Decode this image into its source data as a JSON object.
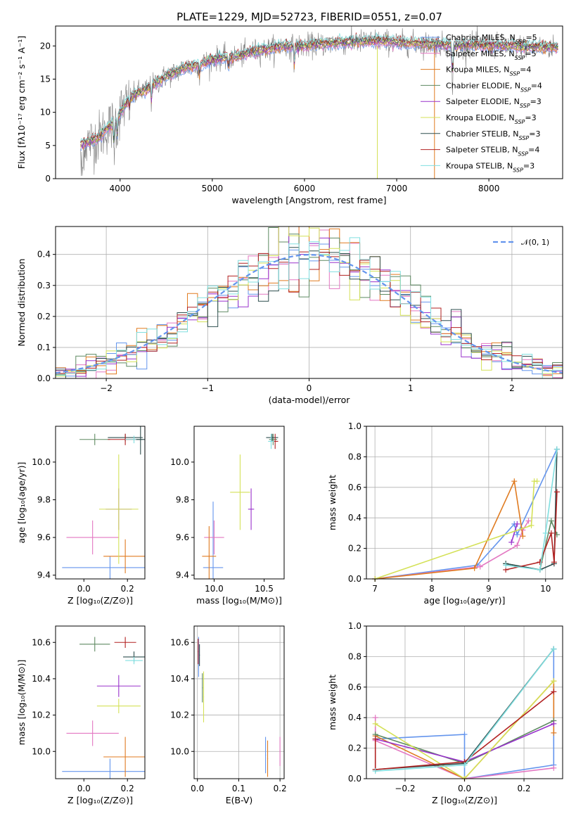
{
  "figure": {
    "title": "PLATE=1229, MJD=52723, FIBERID=0551, z=0.07"
  },
  "chart_data": [
    {
      "id": "spectrum",
      "type": "line",
      "xlabel": "wavelength [Angstrom, rest frame]",
      "ylabel": "Flux [fλ10⁻¹⁷ erg cm⁻² s⁻¹ A⁻¹]",
      "xlim": [
        3300,
        8800
      ],
      "ylim": [
        0,
        23
      ],
      "xticks": [
        "4000",
        "5000",
        "6000",
        "7000",
        "8000"
      ],
      "yticks": [
        "0",
        "5",
        "10",
        "15",
        "20"
      ],
      "grid": false,
      "legend_position": "top-right",
      "data_line": {
        "color": "#808080"
      },
      "continuum_anchors": {
        "x": [
          3570,
          3650,
          3750,
          3850,
          3950,
          4000,
          4100,
          4200,
          4300,
          4400,
          4500,
          4600,
          4700,
          4800,
          4900,
          5000,
          5100,
          5200,
          5300,
          5400,
          5500,
          5600,
          5700,
          5800,
          5900,
          6000,
          6200,
          6400,
          6600,
          6800,
          7000,
          7200,
          7400,
          7600,
          7800,
          8000,
          8200,
          8400,
          8600
        ],
        "y": [
          5.2,
          5.5,
          6.0,
          7.5,
          8.5,
          10.0,
          12.0,
          13.0,
          13.5,
          14.5,
          15.5,
          16.0,
          16.8,
          17.0,
          17.3,
          18.0,
          18.2,
          18.3,
          18.5,
          19.0,
          19.3,
          19.5,
          19.8,
          20.0,
          19.8,
          20.0,
          20.3,
          20.5,
          20.6,
          20.8,
          20.5,
          20.4,
          20.3,
          20.0,
          20.2,
          20.1,
          20.0,
          19.9,
          19.8
        ]
      },
      "series": [
        {
          "name": "Chabrier MILES, N",
          "sub": "SSP",
          "tail": "=5",
          "color": "#6495ed"
        },
        {
          "name": "Salpeter MILES, N",
          "sub": "SSP",
          "tail": "=5",
          "color": "#e377c2"
        },
        {
          "name": "Kroupa MILES, N",
          "sub": "SSP",
          "tail": "=4",
          "color": "#e07b20"
        },
        {
          "name": "Chabrier ELODIE, N",
          "sub": "SSP",
          "tail": "=4",
          "color": "#5e8a62"
        },
        {
          "name": "Salpeter ELODIE, N",
          "sub": "SSP",
          "tail": "=3",
          "color": "#9932cc"
        },
        {
          "name": "Kroupa ELODIE, N",
          "sub": "SSP",
          "tail": "=3",
          "color": "#d4e157"
        },
        {
          "name": "Chabrier STELIB, N",
          "sub": "SSP",
          "tail": "=3",
          "color": "#2f4f4f"
        },
        {
          "name": "Salpeter STELIB, N",
          "sub": "SSP",
          "tail": "=4",
          "color": "#b22222"
        },
        {
          "name": "Kroupa STELIB, N",
          "sub": "SSP",
          "tail": "=3",
          "color": "#80dfe0"
        }
      ]
    },
    {
      "id": "residuals",
      "type": "line",
      "xlabel": "(data-model)/error",
      "ylabel": "Normed distribution",
      "xlim": [
        -2.5,
        2.5
      ],
      "ylim": [
        0,
        0.49
      ],
      "xticks": [
        "−2",
        "−1",
        "0",
        "1",
        "2"
      ],
      "yticks": [
        "0.0",
        "0.1",
        "0.2",
        "0.3",
        "0.4"
      ],
      "grid": true,
      "legend_position": "top-right",
      "reference": {
        "name": "𝒩(0, 1)",
        "color": "#6495ed"
      }
    },
    {
      "id": "age_vs_Z",
      "type": "scatter",
      "xlabel": "Z [log₁₀(Z/Z⊙)]",
      "ylabel": "age  [log₁₀(age/yr)]",
      "xlim": [
        -0.13,
        0.28
      ],
      "ylim": [
        9.38,
        10.19
      ],
      "xticks": [
        "0.0",
        "0.2"
      ],
      "yticks": [
        "9.4",
        "9.6",
        "9.8",
        "10.0"
      ],
      "grid": false,
      "points": [
        {
          "x": 0.12,
          "y": 9.44,
          "xerr": 0.22,
          "yerr": 0.06,
          "color": "#6495ed"
        },
        {
          "x": 0.04,
          "y": 9.6,
          "xerr": 0.12,
          "yerr": 0.09,
          "color": "#e377c2"
        },
        {
          "x": 0.19,
          "y": 9.5,
          "xerr": 0.1,
          "yerr": 0.09,
          "color": "#e07b20"
        },
        {
          "x": 0.05,
          "y": 10.12,
          "xerr": 0.07,
          "yerr": 0.03,
          "color": "#5e8a62"
        },
        {
          "x": 0.16,
          "y": 9.75,
          "xerr": 0.06,
          "yerr": 0.11,
          "color": "#9932cc"
        },
        {
          "x": 0.16,
          "y": 9.75,
          "xerr": 0.09,
          "yerr": 0.29,
          "color": "#d4e157"
        },
        {
          "x": 0.19,
          "y": 10.13,
          "xerr": 0.08,
          "yerr": 0.02,
          "color": "#2f4f4f"
        },
        {
          "x": 0.19,
          "y": 10.12,
          "xerr": 0.08,
          "yerr": 0.03,
          "color": "#b22222"
        },
        {
          "x": 0.23,
          "y": 10.12,
          "xerr": 0.04,
          "yerr": 0.02,
          "color": "#80dfe0"
        },
        {
          "x": 0.26,
          "y": 10.12,
          "xerr": 0.02,
          "yerr": 0.08,
          "color": "#2f4f4f"
        }
      ]
    },
    {
      "id": "age_vs_mass",
      "type": "scatter",
      "xlabel": "mass [log₁₀(M/M⊙)]",
      "ylabel": "",
      "xlim": [
        9.8,
        10.7
      ],
      "ylim": [
        9.38,
        10.19
      ],
      "xticks": [
        "10.0",
        "10.5"
      ],
      "yticks": [
        "9.4",
        "9.6",
        "9.8",
        "10.0"
      ],
      "grid": false,
      "points": [
        {
          "x": 9.99,
          "y": 9.44,
          "xerr": 0.1,
          "yerr": 0.35,
          "color": "#6495ed"
        },
        {
          "x": 10.0,
          "y": 9.6,
          "xerr": 0.1,
          "yerr": 0.09,
          "color": "#e377c2"
        },
        {
          "x": 9.95,
          "y": 9.5,
          "xerr": 0.07,
          "yerr": 0.16,
          "color": "#e07b20"
        },
        {
          "x": 10.59,
          "y": 10.12,
          "xerr": 0.04,
          "yerr": 0.03,
          "color": "#5e8a62"
        },
        {
          "x": 10.37,
          "y": 9.75,
          "xerr": 0.03,
          "yerr": 0.11,
          "color": "#9932cc"
        },
        {
          "x": 10.26,
          "y": 9.84,
          "xerr": 0.1,
          "yerr": 0.2,
          "color": "#d4e157"
        },
        {
          "x": 10.58,
          "y": 10.13,
          "xerr": 0.06,
          "yerr": 0.02,
          "color": "#2f4f4f"
        },
        {
          "x": 10.61,
          "y": 10.11,
          "xerr": 0.03,
          "yerr": 0.04,
          "color": "#b22222"
        },
        {
          "x": 10.57,
          "y": 10.11,
          "xerr": 0.03,
          "yerr": 0.04,
          "color": "#80dfe0"
        }
      ]
    },
    {
      "id": "mass_weight_vs_age",
      "type": "line",
      "xlabel": "age  [log₁₀(age/yr)]",
      "ylabel": "mass weight",
      "xlim": [
        6.85,
        10.3
      ],
      "ylim": [
        0,
        1.0
      ],
      "xticks": [
        "7",
        "8",
        "9",
        "10"
      ],
      "yticks": [
        "0.0",
        "0.2",
        "0.4",
        "0.6",
        "0.8",
        "1.0"
      ],
      "grid": true,
      "series": [
        {
          "color": "#6495ed",
          "x": [
            7.0,
            8.8,
            9.45,
            9.5,
            10.2
          ],
          "y": [
            0.0,
            0.09,
            0.36,
            0.29,
            0.85
          ]
        },
        {
          "color": "#e377c2",
          "x": [
            7.0,
            8.85,
            9.5,
            9.6,
            9.7
          ],
          "y": [
            0.0,
            0.08,
            0.22,
            0.32,
            0.38
          ]
        },
        {
          "color": "#e07b20",
          "x": [
            7.0,
            8.75,
            9.45,
            9.6
          ],
          "y": [
            0.0,
            0.07,
            0.64,
            0.28
          ]
        },
        {
          "color": "#5e8a62",
          "x": [
            9.3,
            9.9,
            10.1,
            10.2
          ],
          "y": [
            0.1,
            0.06,
            0.38,
            0.29
          ]
        },
        {
          "color": "#9932cc",
          "x": [
            9.4,
            9.5
          ],
          "y": [
            0.24,
            0.36
          ]
        },
        {
          "color": "#d4e157",
          "x": [
            7.0,
            9.75,
            9.8,
            9.85
          ],
          "y": [
            0.0,
            0.35,
            0.64,
            0.64
          ]
        },
        {
          "color": "#2f4f4f",
          "x": [
            9.3,
            9.9,
            10.15,
            10.2
          ],
          "y": [
            0.1,
            0.06,
            0.1,
            0.85
          ]
        },
        {
          "color": "#b22222",
          "x": [
            9.3,
            9.9,
            10.1,
            10.15,
            10.2
          ],
          "y": [
            0.06,
            0.11,
            0.3,
            0.11,
            0.57
          ]
        },
        {
          "color": "#80dfe0",
          "x": [
            9.3,
            9.9,
            10.0,
            10.2
          ],
          "y": [
            0.09,
            0.06,
            0.3,
            0.85
          ]
        }
      ]
    },
    {
      "id": "mass_vs_Z",
      "type": "scatter",
      "xlabel": "Z [log₁₀(Z/Z⊙)]",
      "ylabel": "mass [log₁₀(M/M⊙)]",
      "xlim": [
        -0.13,
        0.28
      ],
      "ylim": [
        9.85,
        10.69
      ],
      "xticks": [
        "0.0",
        "0.2"
      ],
      "yticks": [
        "10.0",
        "10.2",
        "10.4",
        "10.6"
      ],
      "grid": false,
      "points": [
        {
          "x": 0.12,
          "y": 9.89,
          "xerr": 0.22,
          "yerr": 0.07,
          "color": "#6495ed"
        },
        {
          "x": 0.04,
          "y": 10.1,
          "xerr": 0.12,
          "yerr": 0.07,
          "color": "#e377c2"
        },
        {
          "x": 0.19,
          "y": 9.97,
          "xerr": 0.1,
          "yerr": 0.11,
          "color": "#e07b20"
        },
        {
          "x": 0.05,
          "y": 10.59,
          "xerr": 0.07,
          "yerr": 0.04,
          "color": "#5e8a62"
        },
        {
          "x": 0.16,
          "y": 10.36,
          "xerr": 0.1,
          "yerr": 0.06,
          "color": "#9932cc"
        },
        {
          "x": 0.16,
          "y": 10.25,
          "xerr": 0.1,
          "yerr": 0.04,
          "color": "#d4e157"
        },
        {
          "x": 0.23,
          "y": 10.52,
          "xerr": 0.05,
          "yerr": 0.03,
          "color": "#2f4f4f"
        },
        {
          "x": 0.19,
          "y": 10.6,
          "xerr": 0.05,
          "yerr": 0.03,
          "color": "#b22222"
        },
        {
          "x": 0.23,
          "y": 10.5,
          "xerr": 0.04,
          "yerr": 0.02,
          "color": "#80dfe0"
        }
      ]
    },
    {
      "id": "mass_vs_EBV",
      "type": "scatter",
      "xlabel": "E(B-V)",
      "ylabel": "",
      "xlim": [
        -0.008,
        0.21
      ],
      "ylim": [
        9.85,
        10.69
      ],
      "xticks": [
        "0.0",
        "0.1",
        "0.2"
      ],
      "yticks": [
        "10.0",
        "10.2",
        "10.4",
        "10.6"
      ],
      "grid": true,
      "points": [
        {
          "x": 0.003,
          "y": 10.52,
          "xerr": 0.001,
          "yerr": 0.11,
          "color": "#6495ed"
        },
        {
          "x": 0.002,
          "y": 10.55,
          "xerr": 0.001,
          "yerr": 0.07,
          "color": "#b22222"
        },
        {
          "x": 0.005,
          "y": 10.53,
          "xerr": 0.001,
          "yerr": 0.06,
          "color": "#2f4f4f"
        },
        {
          "x": 0.015,
          "y": 10.3,
          "xerr": 0.001,
          "yerr": 0.14,
          "color": "#d4e157"
        },
        {
          "x": 0.012,
          "y": 10.35,
          "xerr": 0.001,
          "yerr": 0.08,
          "color": "#5e8a62"
        },
        {
          "x": 0.165,
          "y": 9.98,
          "xerr": 0.001,
          "yerr": 0.1,
          "color": "#6495ed"
        },
        {
          "x": 0.17,
          "y": 9.96,
          "xerr": 0.001,
          "yerr": 0.1,
          "color": "#e07b20"
        },
        {
          "x": 0.2,
          "y": 10.0,
          "xerr": 0.001,
          "yerr": 0.08,
          "color": "#e377c2"
        }
      ]
    },
    {
      "id": "mass_weight_vs_Z",
      "type": "line",
      "xlabel": "Z [log₁₀(Z/Z⊙)]",
      "ylabel": "mass weight",
      "xlim": [
        -0.33,
        0.33
      ],
      "ylim": [
        0,
        1.0
      ],
      "xticks": [
        "−0.2",
        "0.0",
        "0.2"
      ],
      "yticks": [
        "0.0",
        "0.2",
        "0.4",
        "0.6",
        "0.8",
        "1.0"
      ],
      "grid": true,
      "series": [
        {
          "color": "#6495ed",
          "x": [
            -0.3,
            0.0,
            0.0,
            0.3,
            0.3
          ],
          "y": [
            0.26,
            0.29,
            0.0,
            0.09,
            0.85
          ]
        },
        {
          "color": "#e377c2",
          "x": [
            -0.3,
            -0.3,
            0.0,
            0.3
          ],
          "y": [
            0.4,
            0.25,
            0.0,
            0.07
          ]
        },
        {
          "color": "#e07b20",
          "x": [
            -0.3,
            0.0,
            0.3,
            0.3
          ],
          "y": [
            0.28,
            0.0,
            0.64,
            0.3
          ]
        },
        {
          "color": "#5e8a62",
          "x": [
            -0.3,
            0.0,
            0.3
          ],
          "y": [
            0.29,
            0.1,
            0.38
          ]
        },
        {
          "color": "#9932cc",
          "x": [
            -0.3,
            0.0,
            0.3
          ],
          "y": [
            0.26,
            0.11,
            0.36
          ]
        },
        {
          "color": "#d4e157",
          "x": [
            -0.3,
            0.0,
            0.3
          ],
          "y": [
            0.36,
            0.0,
            0.64
          ]
        },
        {
          "color": "#2f4f4f",
          "x": [
            -0.3,
            0.0,
            0.3
          ],
          "y": [
            0.06,
            0.1,
            0.85
          ]
        },
        {
          "color": "#b22222",
          "x": [
            -0.3,
            -0.3,
            0.0,
            0.3
          ],
          "y": [
            0.26,
            0.06,
            0.11,
            0.57
          ]
        },
        {
          "color": "#80dfe0",
          "x": [
            -0.3,
            0.0,
            0.3
          ],
          "y": [
            0.05,
            0.09,
            0.85
          ]
        }
      ]
    }
  ]
}
